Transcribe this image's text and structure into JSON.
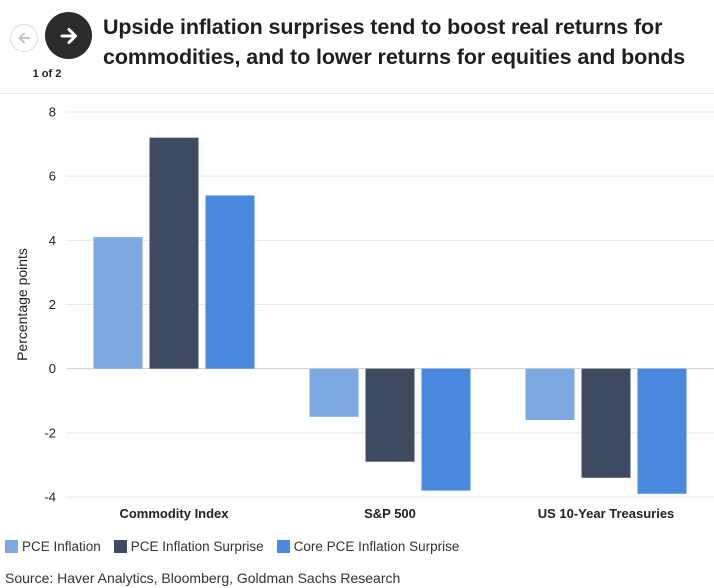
{
  "header": {
    "title": "Upside inflation surprises tend to boost real returns for commodities, and to lower returns for equities and bonds",
    "page_counter": "1 of 2",
    "prev_icon": "arrow-left-icon",
    "next_icon": "arrow-right-icon"
  },
  "chart_data": {
    "type": "bar",
    "title": "Upside inflation surprises tend to boost real returns for commodities, and to lower returns for equities and bonds",
    "xlabel": "",
    "ylabel": "Percentage points",
    "ylim": [
      -4,
      8
    ],
    "yticks": [
      -4,
      -2,
      0,
      2,
      4,
      6,
      8
    ],
    "grid": true,
    "legend_position": "bottom-left",
    "categories": [
      "Commodity Index",
      "S&P 500",
      "US 10-Year Treasuries"
    ],
    "series": [
      {
        "name": "PCE Inflation",
        "color": "#7ea8e4",
        "values": [
          4.1,
          -1.5,
          -1.6
        ]
      },
      {
        "name": "PCE Inflation Surprise",
        "color": "#3d4a60",
        "values": [
          7.2,
          -2.9,
          -3.4
        ]
      },
      {
        "name": "Core PCE Inflation Surprise",
        "color": "#4a8ade",
        "values": [
          5.4,
          -3.8,
          -3.9
        ]
      }
    ]
  },
  "legend": {
    "items": [
      "PCE Inflation",
      "PCE Inflation Surprise",
      "Core PCE Inflation Surprise"
    ]
  },
  "source": "Source: Haver Analytics, Bloomberg, Goldman Sachs Research"
}
